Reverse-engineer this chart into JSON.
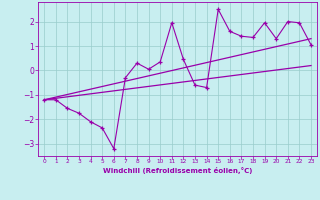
{
  "xlabel": "Windchill (Refroidissement éolien,°C)",
  "bg_color": "#c8eef0",
  "line_color": "#9900aa",
  "grid_color": "#99cccc",
  "xlim": [
    -0.5,
    23.5
  ],
  "ylim": [
    -3.5,
    2.8
  ],
  "xticks": [
    0,
    1,
    2,
    3,
    4,
    5,
    6,
    7,
    8,
    9,
    10,
    11,
    12,
    13,
    14,
    15,
    16,
    17,
    18,
    19,
    20,
    21,
    22,
    23
  ],
  "yticks": [
    -3,
    -2,
    -1,
    0,
    1,
    2
  ],
  "series1_x": [
    0,
    1,
    2,
    3,
    4,
    5,
    6,
    7,
    8,
    9,
    10,
    11,
    12,
    13,
    14,
    15,
    16,
    17,
    18,
    19,
    20,
    21,
    22,
    23
  ],
  "series1_y": [
    -1.2,
    -1.2,
    -1.55,
    -1.75,
    -2.1,
    -2.35,
    -3.2,
    -0.3,
    0.3,
    0.05,
    0.35,
    1.95,
    0.45,
    -0.6,
    -0.7,
    2.5,
    1.6,
    1.4,
    1.35,
    1.95,
    1.3,
    2.0,
    1.95,
    1.05
  ],
  "series2_x": [
    0,
    23
  ],
  "series2_y": [
    -1.2,
    1.3
  ],
  "series3_x": [
    0,
    23
  ],
  "series3_y": [
    -1.2,
    0.2
  ]
}
